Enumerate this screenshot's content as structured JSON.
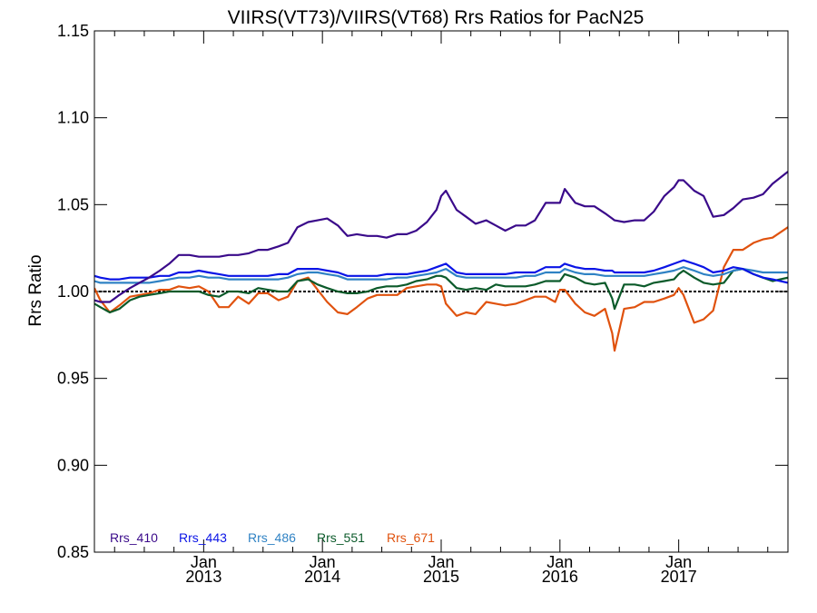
{
  "chart_data": {
    "type": "line",
    "title": "VIIRS(VT73)/VIIRS(VT68)  Rrs Ratios for PacN25",
    "xlabel": "",
    "ylabel": "Rrs Ratio",
    "xlim": [
      2012.08,
      2017.92
    ],
    "ylim": [
      0.85,
      1.15
    ],
    "yticks": [
      0.85,
      0.9,
      0.95,
      1.0,
      1.05,
      1.1,
      1.15
    ],
    "ytick_labels": [
      "0.85",
      "0.90",
      "0.95",
      "1.00",
      "1.05",
      "1.10",
      "1.15"
    ],
    "xticks": [
      {
        "value": 2013.0,
        "line1": "Jan",
        "line2": "2013"
      },
      {
        "value": 2014.0,
        "line1": "Jan",
        "line2": "2014"
      },
      {
        "value": 2015.0,
        "line1": "Jan",
        "line2": "2015"
      },
      {
        "value": 2016.0,
        "line1": "Jan",
        "line2": "2016"
      },
      {
        "value": 2017.0,
        "line1": "Jan",
        "line2": "2017"
      }
    ],
    "reference_line": 1.0,
    "legend_position": "bottom-left",
    "x": [
      2012.08,
      2012.13,
      2012.21,
      2012.29,
      2012.38,
      2012.46,
      2012.54,
      2012.63,
      2012.71,
      2012.79,
      2012.88,
      2012.96,
      2013.04,
      2013.13,
      2013.21,
      2013.29,
      2013.38,
      2013.46,
      2013.54,
      2013.63,
      2013.71,
      2013.79,
      2013.88,
      2013.96,
      2014.04,
      2014.13,
      2014.21,
      2014.29,
      2014.38,
      2014.46,
      2014.54,
      2014.63,
      2014.71,
      2014.79,
      2014.88,
      2014.96,
      2015.0,
      2015.04,
      2015.13,
      2015.21,
      2015.29,
      2015.38,
      2015.46,
      2015.54,
      2015.63,
      2015.71,
      2015.79,
      2015.88,
      2015.96,
      2016.0,
      2016.04,
      2016.13,
      2016.21,
      2016.29,
      2016.38,
      2016.44,
      2016.46,
      2016.54,
      2016.63,
      2016.71,
      2016.79,
      2016.88,
      2016.96,
      2017.0,
      2017.04,
      2017.13,
      2017.21,
      2017.29,
      2017.38,
      2017.46,
      2017.54,
      2017.63,
      2017.71,
      2017.79,
      2017.92
    ],
    "series": [
      {
        "name": "Rrs_410",
        "color": "#3a0a8a",
        "values": [
          0.995,
          0.994,
          0.994,
          0.998,
          1.002,
          1.005,
          1.008,
          1.012,
          1.016,
          1.021,
          1.021,
          1.02,
          1.02,
          1.02,
          1.021,
          1.021,
          1.022,
          1.024,
          1.024,
          1.026,
          1.028,
          1.037,
          1.04,
          1.041,
          1.042,
          1.038,
          1.032,
          1.033,
          1.032,
          1.032,
          1.031,
          1.033,
          1.033,
          1.035,
          1.04,
          1.047,
          1.055,
          1.058,
          1.047,
          1.043,
          1.039,
          1.041,
          1.038,
          1.035,
          1.038,
          1.038,
          1.041,
          1.051,
          1.051,
          1.051,
          1.059,
          1.051,
          1.049,
          1.049,
          1.045,
          1.042,
          1.041,
          1.04,
          1.041,
          1.041,
          1.046,
          1.055,
          1.06,
          1.064,
          1.064,
          1.058,
          1.055,
          1.043,
          1.044,
          1.048,
          1.053,
          1.054,
          1.056,
          1.062,
          1.069
        ]
      },
      {
        "name": "Rrs_443",
        "color": "#0a14e6",
        "values": [
          1.009,
          1.008,
          1.007,
          1.007,
          1.008,
          1.008,
          1.008,
          1.009,
          1.009,
          1.011,
          1.011,
          1.012,
          1.011,
          1.01,
          1.009,
          1.009,
          1.009,
          1.009,
          1.009,
          1.01,
          1.01,
          1.013,
          1.013,
          1.013,
          1.012,
          1.011,
          1.009,
          1.009,
          1.009,
          1.009,
          1.01,
          1.01,
          1.01,
          1.011,
          1.012,
          1.014,
          1.015,
          1.016,
          1.011,
          1.01,
          1.01,
          1.01,
          1.01,
          1.01,
          1.011,
          1.011,
          1.011,
          1.014,
          1.014,
          1.014,
          1.016,
          1.014,
          1.013,
          1.013,
          1.012,
          1.012,
          1.011,
          1.011,
          1.011,
          1.011,
          1.012,
          1.014,
          1.016,
          1.017,
          1.018,
          1.016,
          1.014,
          1.011,
          1.012,
          1.014,
          1.013,
          1.01,
          1.008,
          1.007,
          1.005
        ]
      },
      {
        "name": "Rrs_486",
        "color": "#2f82c4",
        "values": [
          1.006,
          1.005,
          1.005,
          1.005,
          1.005,
          1.005,
          1.005,
          1.006,
          1.007,
          1.008,
          1.008,
          1.009,
          1.008,
          1.008,
          1.007,
          1.007,
          1.007,
          1.007,
          1.007,
          1.007,
          1.008,
          1.01,
          1.011,
          1.011,
          1.01,
          1.009,
          1.007,
          1.007,
          1.007,
          1.007,
          1.007,
          1.008,
          1.008,
          1.009,
          1.01,
          1.011,
          1.012,
          1.013,
          1.009,
          1.008,
          1.008,
          1.008,
          1.008,
          1.008,
          1.008,
          1.009,
          1.009,
          1.011,
          1.011,
          1.011,
          1.013,
          1.011,
          1.01,
          1.01,
          1.009,
          1.009,
          1.009,
          1.009,
          1.009,
          1.009,
          1.01,
          1.011,
          1.012,
          1.013,
          1.014,
          1.012,
          1.01,
          1.009,
          1.01,
          1.012,
          1.013,
          1.012,
          1.011,
          1.011,
          1.011
        ]
      },
      {
        "name": "Rrs_551",
        "color": "#0b5a2a",
        "values": [
          0.993,
          0.991,
          0.988,
          0.99,
          0.995,
          0.997,
          0.998,
          0.999,
          1.0,
          1.0,
          1.0,
          1.0,
          0.998,
          0.997,
          1.0,
          1.0,
          0.999,
          1.002,
          1.001,
          1.0,
          1.0,
          1.006,
          1.007,
          1.004,
          1.002,
          1.0,
          0.999,
          0.999,
          1.0,
          1.002,
          1.003,
          1.003,
          1.004,
          1.006,
          1.007,
          1.009,
          1.009,
          1.008,
          1.002,
          1.001,
          1.002,
          1.001,
          1.004,
          1.003,
          1.003,
          1.003,
          1.004,
          1.006,
          1.006,
          1.006,
          1.01,
          1.008,
          1.005,
          1.004,
          1.005,
          0.996,
          0.99,
          1.004,
          1.004,
          1.003,
          1.005,
          1.006,
          1.007,
          1.01,
          1.012,
          1.008,
          1.005,
          1.004,
          1.005,
          1.012,
          1.013,
          1.01,
          1.008,
          1.006,
          1.008
        ]
      },
      {
        "name": "Rrs_671",
        "color": "#e0520e",
        "values": [
          1.002,
          0.995,
          0.988,
          0.992,
          0.997,
          0.998,
          0.999,
          1.001,
          1.001,
          1.003,
          1.002,
          1.003,
          1.0,
          0.991,
          0.991,
          0.997,
          0.993,
          0.999,
          0.999,
          0.995,
          0.997,
          1.006,
          1.008,
          1.001,
          0.994,
          0.988,
          0.987,
          0.991,
          0.996,
          0.998,
          0.998,
          0.998,
          1.002,
          1.003,
          1.004,
          1.004,
          1.003,
          0.993,
          0.986,
          0.988,
          0.987,
          0.994,
          0.993,
          0.992,
          0.993,
          0.995,
          0.997,
          0.997,
          0.994,
          1.001,
          1.001,
          0.993,
          0.988,
          0.986,
          0.99,
          0.976,
          0.966,
          0.99,
          0.991,
          0.994,
          0.994,
          0.996,
          0.998,
          1.002,
          0.998,
          0.982,
          0.984,
          0.989,
          1.014,
          1.024,
          1.024,
          1.028,
          1.03,
          1.031,
          1.037
        ]
      }
    ]
  }
}
